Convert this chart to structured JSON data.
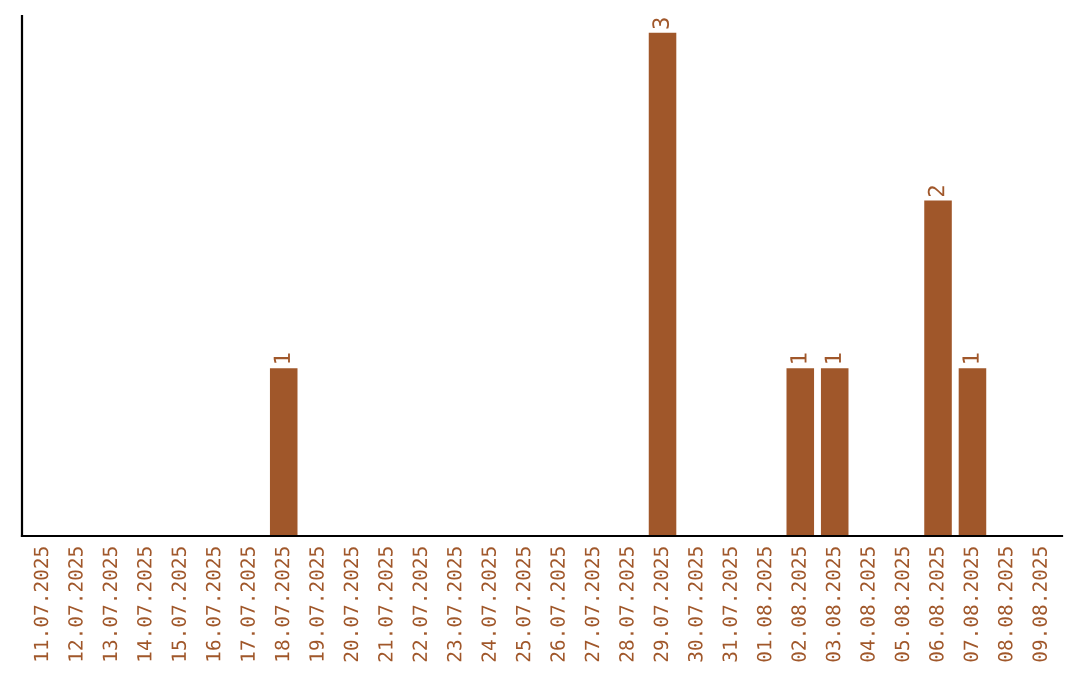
{
  "chart_data": {
    "type": "bar",
    "categories": [
      "11.07.2025",
      "12.07.2025",
      "13.07.2025",
      "14.07.2025",
      "15.07.2025",
      "16.07.2025",
      "17.07.2025",
      "18.07.2025",
      "19.07.2025",
      "20.07.2025",
      "21.07.2025",
      "22.07.2025",
      "23.07.2025",
      "24.07.2025",
      "25.07.2025",
      "26.07.2025",
      "27.07.2025",
      "28.07.2025",
      "29.07.2025",
      "30.07.2025",
      "31.07.2025",
      "01.08.2025",
      "02.08.2025",
      "03.08.2025",
      "04.08.2025",
      "05.08.2025",
      "06.08.2025",
      "07.08.2025",
      "08.08.2025",
      "09.08.2025"
    ],
    "values": [
      0,
      0,
      0,
      0,
      0,
      0,
      0,
      1,
      0,
      0,
      0,
      0,
      0,
      0,
      0,
      0,
      0,
      0,
      3,
      0,
      0,
      0,
      1,
      1,
      0,
      0,
      2,
      1,
      0,
      0
    ],
    "color": "#a0572a",
    "ylim": [
      0,
      3.1
    ],
    "tick_labels": "x",
    "value_labels": [
      null,
      null,
      null,
      null,
      null,
      null,
      null,
      "1",
      null,
      null,
      null,
      null,
      null,
      null,
      null,
      null,
      null,
      null,
      "3",
      null,
      null,
      null,
      "1",
      "1",
      null,
      null,
      "2",
      "1",
      null,
      null
    ],
    "grid": false,
    "legend": false
  }
}
